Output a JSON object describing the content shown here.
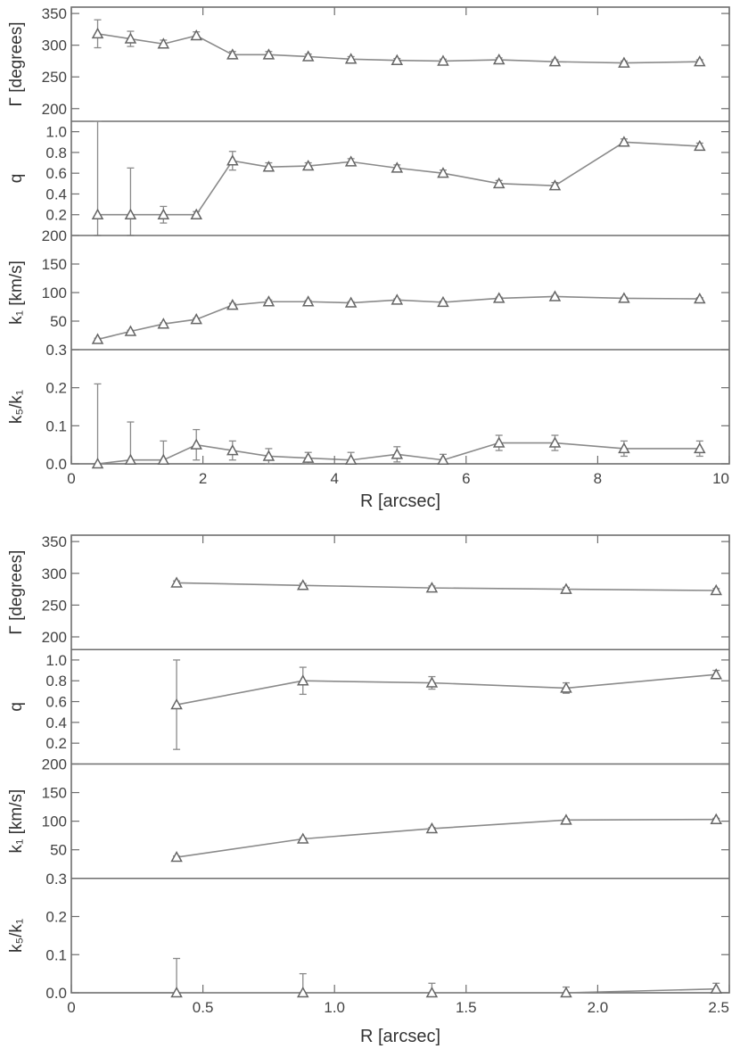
{
  "chart_data": [
    {
      "type": "scatter",
      "x_values": [
        0.4,
        0.9,
        1.4,
        1.9,
        2.45,
        3.0,
        3.6,
        4.25,
        4.95,
        5.65,
        6.5,
        7.35,
        8.4,
        9.55
      ],
      "xlim": [
        0,
        10
      ],
      "xticks": [
        "0",
        "2",
        "4",
        "6",
        "8",
        "10"
      ],
      "xlabel": "R [arcsec]",
      "panels": [
        {
          "ylabel": "Γ [degrees]",
          "ylim": [
            180,
            360
          ],
          "yticks": [
            "200",
            "250",
            "300",
            "350"
          ],
          "values": [
            318,
            310,
            302,
            315,
            285,
            285,
            282,
            278,
            276,
            275,
            277,
            274,
            272,
            274
          ],
          "errors": [
            22,
            12,
            6,
            6,
            5,
            5,
            4,
            4,
            3,
            3,
            3,
            3,
            3,
            3
          ]
        },
        {
          "ylabel": "q",
          "ylim": [
            0.0,
            1.1
          ],
          "yticks": [
            "0.2",
            "0.4",
            "0.6",
            "0.8",
            "1.0"
          ],
          "values": [
            0.2,
            0.2,
            0.2,
            0.2,
            0.72,
            0.66,
            0.67,
            0.71,
            0.65,
            0.6,
            0.5,
            0.48,
            0.9,
            0.86
          ],
          "errors": [
            1.0,
            0.45,
            0.08,
            0.03,
            0.09,
            0.04,
            0.03,
            0.03,
            0.03,
            0.03,
            0.03,
            0.03,
            0.03,
            0.03
          ]
        },
        {
          "ylabel": "k₁ [km/s]",
          "ylim": [
            0,
            200
          ],
          "yticks": [
            "50",
            "100",
            "150",
            "200"
          ],
          "values": [
            18,
            32,
            45,
            53,
            78,
            84,
            84,
            82,
            87,
            83,
            90,
            93,
            90,
            89
          ],
          "errors": [
            2,
            2,
            2,
            2,
            3,
            3,
            2,
            2,
            2,
            2,
            2,
            2,
            2,
            2
          ]
        },
        {
          "ylabel": "k₅/k₁",
          "ylim": [
            0,
            0.3
          ],
          "yticks": [
            "0.0",
            "0.1",
            "0.2",
            "0.3"
          ],
          "values": [
            0.0,
            0.01,
            0.01,
            0.05,
            0.035,
            0.02,
            0.015,
            0.01,
            0.025,
            0.01,
            0.055,
            0.055,
            0.04,
            0.04
          ],
          "errors": [
            0.21,
            0.1,
            0.05,
            0.04,
            0.025,
            0.02,
            0.015,
            0.02,
            0.02,
            0.015,
            0.02,
            0.02,
            0.02,
            0.02
          ]
        }
      ]
    },
    {
      "type": "scatter",
      "x_values": [
        0.4,
        0.88,
        1.37,
        1.88,
        2.45
      ],
      "xlim": [
        0,
        2.5
      ],
      "xticks": [
        "0",
        "0.5",
        "1.0",
        "1.5",
        "2.0",
        "2.5"
      ],
      "xlabel": "R [arcsec]",
      "panels": [
        {
          "ylabel": "Γ [degrees]",
          "ylim": [
            180,
            360
          ],
          "yticks": [
            "200",
            "250",
            "300",
            "350"
          ],
          "values": [
            285,
            281,
            277,
            275,
            273
          ],
          "errors": [
            3,
            3,
            3,
            3,
            3
          ]
        },
        {
          "ylabel": "q",
          "ylim": [
            0.0,
            1.1
          ],
          "yticks": [
            "0.2",
            "0.4",
            "0.6",
            "0.8",
            "1.0"
          ],
          "values": [
            0.57,
            0.8,
            0.78,
            0.73,
            0.86
          ],
          "errors": [
            0.43,
            0.13,
            0.06,
            0.05,
            0.04
          ]
        },
        {
          "ylabel": "k₁ [km/s]",
          "ylim": [
            0,
            200
          ],
          "yticks": [
            "50",
            "100",
            "150",
            "200"
          ],
          "values": [
            37,
            69,
            87,
            102,
            103
          ],
          "errors": [
            2,
            2,
            2,
            2,
            2
          ]
        },
        {
          "ylabel": "k₅/k₁",
          "ylim": [
            0,
            0.3
          ],
          "yticks": [
            "0.0",
            "0.1",
            "0.2",
            "0.3"
          ],
          "values": [
            0.0,
            0.0,
            0.0,
            0.0,
            0.01
          ],
          "errors": [
            0.09,
            0.05,
            0.025,
            0.015,
            0.015
          ]
        }
      ]
    }
  ]
}
